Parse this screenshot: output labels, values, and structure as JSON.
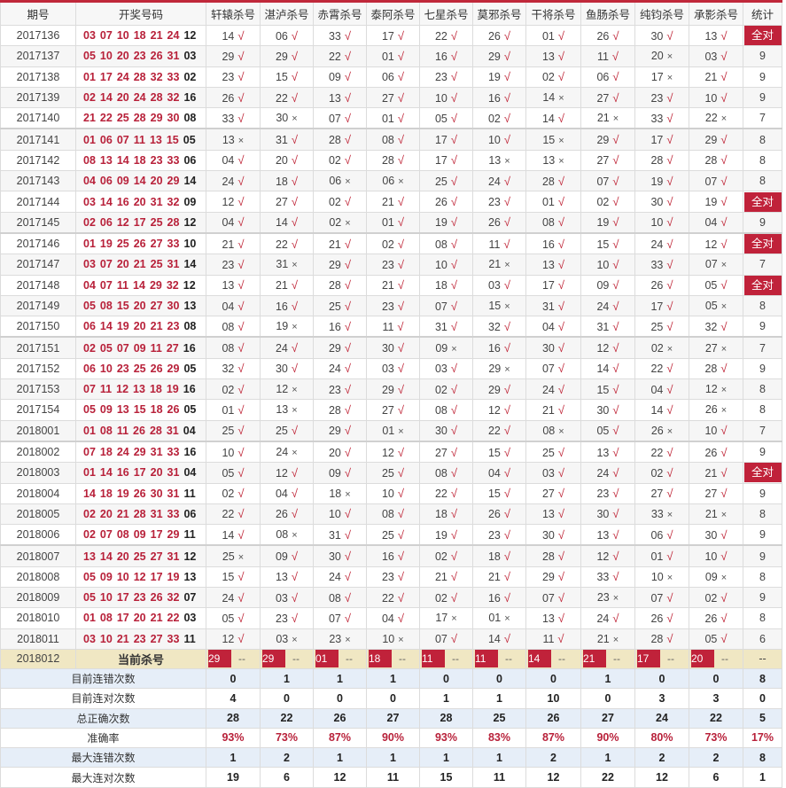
{
  "colors": {
    "accent": "#c0223a",
    "current_row_bg": "#f0e7c3",
    "stat_row_alt_bg": "#e6eef8"
  },
  "headers": [
    "期号",
    "开奖号码",
    "轩辕杀号",
    "湛泸杀号",
    "赤霄杀号",
    "泰阿杀号",
    "七星杀号",
    "莫邪杀号",
    "干将杀号",
    "鱼肠杀号",
    "纯钧杀号",
    "承影杀号",
    "统计"
  ],
  "rows": [
    {
      "period": "2017136",
      "reds": [
        "03",
        "07",
        "10",
        "18",
        "21",
        "24"
      ],
      "blue": "12",
      "kills": [
        "14 √",
        "06 √",
        "33 √",
        "17 √",
        "22 √",
        "26 √",
        "01 √",
        "26 √",
        "30 √",
        "13 √"
      ],
      "count": "全对"
    },
    {
      "period": "2017137",
      "reds": [
        "05",
        "10",
        "20",
        "23",
        "26",
        "31"
      ],
      "blue": "03",
      "kills": [
        "29 √",
        "29 √",
        "22 √",
        "01 √",
        "16 √",
        "29 √",
        "13 √",
        "11 √",
        "20 ×",
        "03 √"
      ],
      "count": "9"
    },
    {
      "period": "2017138",
      "reds": [
        "01",
        "17",
        "24",
        "28",
        "32",
        "33"
      ],
      "blue": "02",
      "kills": [
        "23 √",
        "15 √",
        "09 √",
        "06 √",
        "23 √",
        "19 √",
        "02 √",
        "06 √",
        "17 ×",
        "21 √"
      ],
      "count": "9"
    },
    {
      "period": "2017139",
      "reds": [
        "02",
        "14",
        "20",
        "24",
        "28",
        "32"
      ],
      "blue": "16",
      "kills": [
        "26 √",
        "22 √",
        "13 √",
        "27 √",
        "10 √",
        "16 √",
        "14 ×",
        "27 √",
        "23 √",
        "10 √"
      ],
      "count": "9"
    },
    {
      "period": "2017140",
      "reds": [
        "21",
        "22",
        "25",
        "28",
        "29",
        "30"
      ],
      "blue": "08",
      "kills": [
        "33 √",
        "30 ×",
        "07 √",
        "01 √",
        "05 √",
        "02 √",
        "14 √",
        "21 ×",
        "33 √",
        "22 ×"
      ],
      "count": "7"
    },
    {
      "period": "2017141",
      "reds": [
        "01",
        "06",
        "07",
        "11",
        "13",
        "15"
      ],
      "blue": "05",
      "kills": [
        "13 ×",
        "31 √",
        "28 √",
        "08 √",
        "17 √",
        "10 √",
        "15 ×",
        "29 √",
        "17 √",
        "29 √"
      ],
      "count": "8"
    },
    {
      "period": "2017142",
      "reds": [
        "08",
        "13",
        "14",
        "18",
        "23",
        "33"
      ],
      "blue": "06",
      "kills": [
        "04 √",
        "20 √",
        "02 √",
        "28 √",
        "17 √",
        "13 ×",
        "13 ×",
        "27 √",
        "28 √",
        "28 √"
      ],
      "count": "8"
    },
    {
      "period": "2017143",
      "reds": [
        "04",
        "06",
        "09",
        "14",
        "20",
        "29"
      ],
      "blue": "14",
      "kills": [
        "24 √",
        "18 √",
        "06 ×",
        "06 ×",
        "25 √",
        "24 √",
        "28 √",
        "07 √",
        "19 √",
        "07 √"
      ],
      "count": "8"
    },
    {
      "period": "2017144",
      "reds": [
        "03",
        "14",
        "16",
        "20",
        "31",
        "32"
      ],
      "blue": "09",
      "kills": [
        "12 √",
        "27 √",
        "02 √",
        "21 √",
        "26 √",
        "23 √",
        "01 √",
        "02 √",
        "30 √",
        "19 √"
      ],
      "count": "全对"
    },
    {
      "period": "2017145",
      "reds": [
        "02",
        "06",
        "12",
        "17",
        "25",
        "28"
      ],
      "blue": "12",
      "kills": [
        "04 √",
        "14 √",
        "02 ×",
        "01 √",
        "19 √",
        "26 √",
        "08 √",
        "19 √",
        "10 √",
        "04 √"
      ],
      "count": "9"
    },
    {
      "period": "2017146",
      "reds": [
        "01",
        "19",
        "25",
        "26",
        "27",
        "33"
      ],
      "blue": "10",
      "kills": [
        "21 √",
        "22 √",
        "21 √",
        "02 √",
        "08 √",
        "11 √",
        "16 √",
        "15 √",
        "24 √",
        "12 √"
      ],
      "count": "全对"
    },
    {
      "period": "2017147",
      "reds": [
        "03",
        "07",
        "20",
        "21",
        "25",
        "31"
      ],
      "blue": "14",
      "kills": [
        "23 √",
        "31 ×",
        "29 √",
        "23 √",
        "10 √",
        "21 ×",
        "13 √",
        "10 √",
        "33 √",
        "07 ×"
      ],
      "count": "7"
    },
    {
      "period": "2017148",
      "reds": [
        "04",
        "07",
        "11",
        "14",
        "29",
        "32"
      ],
      "blue": "12",
      "kills": [
        "13 √",
        "21 √",
        "28 √",
        "21 √",
        "18 √",
        "03 √",
        "17 √",
        "09 √",
        "26 √",
        "05 √"
      ],
      "count": "全对"
    },
    {
      "period": "2017149",
      "reds": [
        "05",
        "08",
        "15",
        "20",
        "27",
        "30"
      ],
      "blue": "13",
      "kills": [
        "04 √",
        "16 √",
        "25 √",
        "23 √",
        "07 √",
        "15 ×",
        "31 √",
        "24 √",
        "17 √",
        "05 ×"
      ],
      "count": "8"
    },
    {
      "period": "2017150",
      "reds": [
        "06",
        "14",
        "19",
        "20",
        "21",
        "23"
      ],
      "blue": "08",
      "kills": [
        "08 √",
        "19 ×",
        "16 √",
        "11 √",
        "31 √",
        "32 √",
        "04 √",
        "31 √",
        "25 √",
        "32 √"
      ],
      "count": "9"
    },
    {
      "period": "2017151",
      "reds": [
        "02",
        "05",
        "07",
        "09",
        "11",
        "27"
      ],
      "blue": "16",
      "kills": [
        "08 √",
        "24 √",
        "29 √",
        "30 √",
        "09 ×",
        "16 √",
        "30 √",
        "12 √",
        "02 ×",
        "27 ×"
      ],
      "count": "7"
    },
    {
      "period": "2017152",
      "reds": [
        "06",
        "10",
        "23",
        "25",
        "26",
        "29"
      ],
      "blue": "05",
      "kills": [
        "32 √",
        "30 √",
        "24 √",
        "03 √",
        "03 √",
        "29 ×",
        "07 √",
        "14 √",
        "22 √",
        "28 √"
      ],
      "count": "9"
    },
    {
      "period": "2017153",
      "reds": [
        "07",
        "11",
        "12",
        "13",
        "18",
        "19"
      ],
      "blue": "16",
      "kills": [
        "02 √",
        "12 ×",
        "23 √",
        "29 √",
        "02 √",
        "29 √",
        "24 √",
        "15 √",
        "04 √",
        "12 ×"
      ],
      "count": "8"
    },
    {
      "period": "2017154",
      "reds": [
        "05",
        "09",
        "13",
        "15",
        "18",
        "26"
      ],
      "blue": "05",
      "kills": [
        "01 √",
        "13 ×",
        "28 √",
        "27 √",
        "08 √",
        "12 √",
        "21 √",
        "30 √",
        "14 √",
        "26 ×"
      ],
      "count": "8"
    },
    {
      "period": "2018001",
      "reds": [
        "01",
        "08",
        "11",
        "26",
        "28",
        "31"
      ],
      "blue": "04",
      "kills": [
        "25 √",
        "25 √",
        "29 √",
        "01 ×",
        "30 √",
        "22 √",
        "08 ×",
        "05 √",
        "26 ×",
        "10 √"
      ],
      "count": "7"
    },
    {
      "period": "2018002",
      "reds": [
        "07",
        "18",
        "24",
        "29",
        "31",
        "33"
      ],
      "blue": "16",
      "kills": [
        "10 √",
        "24 ×",
        "20 √",
        "12 √",
        "27 √",
        "15 √",
        "25 √",
        "13 √",
        "22 √",
        "26 √"
      ],
      "count": "9"
    },
    {
      "period": "2018003",
      "reds": [
        "01",
        "14",
        "16",
        "17",
        "20",
        "31"
      ],
      "blue": "04",
      "kills": [
        "05 √",
        "12 √",
        "09 √",
        "25 √",
        "08 √",
        "04 √",
        "03 √",
        "24 √",
        "02 √",
        "21 √"
      ],
      "count": "全对"
    },
    {
      "period": "2018004",
      "reds": [
        "14",
        "18",
        "19",
        "26",
        "30",
        "31"
      ],
      "blue": "11",
      "kills": [
        "02 √",
        "04 √",
        "18 ×",
        "10 √",
        "22 √",
        "15 √",
        "27 √",
        "23 √",
        "27 √",
        "27 √"
      ],
      "count": "9"
    },
    {
      "period": "2018005",
      "reds": [
        "02",
        "20",
        "21",
        "28",
        "31",
        "33"
      ],
      "blue": "06",
      "kills": [
        "22 √",
        "26 √",
        "10 √",
        "08 √",
        "18 √",
        "26 √",
        "13 √",
        "30 √",
        "33 ×",
        "21 ×"
      ],
      "count": "8"
    },
    {
      "period": "2018006",
      "reds": [
        "02",
        "07",
        "08",
        "09",
        "17",
        "29"
      ],
      "blue": "11",
      "kills": [
        "14 √",
        "08 ×",
        "31 √",
        "25 √",
        "19 √",
        "23 √",
        "30 √",
        "13 √",
        "06 √",
        "30 √"
      ],
      "count": "9"
    },
    {
      "period": "2018007",
      "reds": [
        "13",
        "14",
        "20",
        "25",
        "27",
        "31"
      ],
      "blue": "12",
      "kills": [
        "25 ×",
        "09 √",
        "30 √",
        "16 √",
        "02 √",
        "18 √",
        "28 √",
        "12 √",
        "01 √",
        "10 √"
      ],
      "count": "9"
    },
    {
      "period": "2018008",
      "reds": [
        "05",
        "09",
        "10",
        "12",
        "17",
        "19"
      ],
      "blue": "13",
      "kills": [
        "15 √",
        "13 √",
        "24 √",
        "23 √",
        "21 √",
        "21 √",
        "29 √",
        "33 √",
        "10 ×",
        "09 ×"
      ],
      "count": "8"
    },
    {
      "period": "2018009",
      "reds": [
        "05",
        "10",
        "17",
        "23",
        "26",
        "32"
      ],
      "blue": "07",
      "kills": [
        "24 √",
        "03 √",
        "08 √",
        "22 √",
        "02 √",
        "16 √",
        "07 √",
        "23 ×",
        "07 √",
        "02 √"
      ],
      "count": "9"
    },
    {
      "period": "2018010",
      "reds": [
        "01",
        "08",
        "17",
        "20",
        "21",
        "22"
      ],
      "blue": "03",
      "kills": [
        "05 √",
        "23 √",
        "07 √",
        "04 √",
        "17 ×",
        "01 ×",
        "13 √",
        "24 √",
        "26 √",
        "26 √"
      ],
      "count": "8"
    },
    {
      "period": "2018011",
      "reds": [
        "03",
        "10",
        "21",
        "23",
        "27",
        "33"
      ],
      "blue": "11",
      "kills": [
        "12 √",
        "03 ×",
        "23 ×",
        "10 ×",
        "07 √",
        "14 √",
        "11 √",
        "21 ×",
        "28 √",
        "05 √"
      ],
      "count": "6"
    }
  ],
  "current": {
    "period": "2018012",
    "label": "当前杀号",
    "kills": [
      "29",
      "29",
      "01",
      "18",
      "11",
      "11",
      "14",
      "21",
      "17",
      "20"
    ],
    "pending": "--",
    "count": "--"
  },
  "stats": [
    {
      "label": "目前连错次数",
      "values": [
        "0",
        "1",
        "1",
        "1",
        "0",
        "0",
        "0",
        "1",
        "0",
        "0",
        "8"
      ]
    },
    {
      "label": "目前连对次数",
      "values": [
        "4",
        "0",
        "0",
        "0",
        "1",
        "1",
        "10",
        "0",
        "3",
        "3",
        "0"
      ]
    },
    {
      "label": "总正确次数",
      "values": [
        "28",
        "22",
        "26",
        "27",
        "28",
        "25",
        "26",
        "27",
        "24",
        "22",
        "5"
      ]
    },
    {
      "label": "准确率",
      "values": [
        "93%",
        "73%",
        "87%",
        "90%",
        "93%",
        "83%",
        "87%",
        "90%",
        "80%",
        "73%",
        "17%"
      ]
    },
    {
      "label": "最大连错次数",
      "values": [
        "1",
        "2",
        "1",
        "1",
        "1",
        "1",
        "2",
        "1",
        "2",
        "2",
        "8"
      ]
    },
    {
      "label": "最大连对次数",
      "values": [
        "19",
        "6",
        "12",
        "11",
        "15",
        "11",
        "12",
        "22",
        "12",
        "6",
        "1"
      ]
    }
  ]
}
